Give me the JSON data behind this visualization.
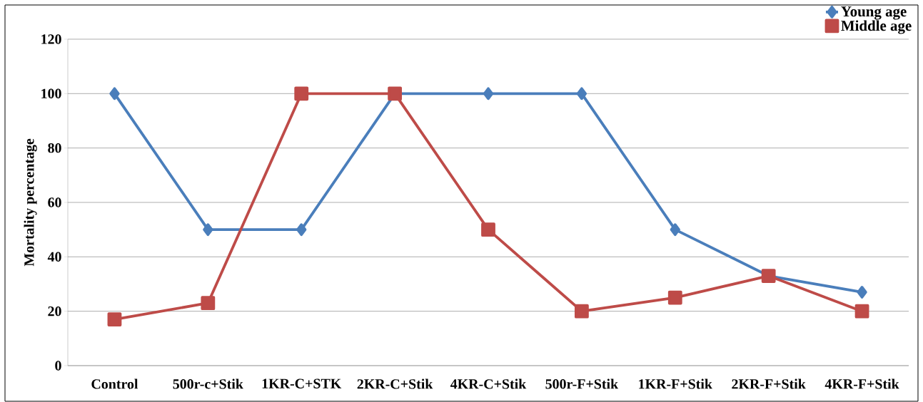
{
  "chart_data": {
    "type": "line",
    "ylabel": "Mortality percentage",
    "categories": [
      "Control",
      "500r-c+Stik",
      "1KR-C+STK",
      "2KR-C+Stik",
      "4KR-C+Stik",
      "500r-F+Stik",
      "1KR-F+Stik",
      "2KR-F+Stik",
      "4KR-F+Stik"
    ],
    "series": [
      {
        "name": "Young age",
        "color": "#4a7ebb",
        "marker": "diamond",
        "values": [
          100,
          50,
          50,
          100,
          100,
          100,
          50,
          33,
          27
        ]
      },
      {
        "name": "Middle age",
        "color": "#be4b48",
        "marker": "square",
        "values": [
          17,
          23,
          100,
          100,
          50,
          20,
          25,
          33,
          20
        ]
      }
    ],
    "ylim": [
      0,
      120
    ],
    "yticks": [
      0,
      20,
      40,
      60,
      80,
      100,
      120
    ],
    "grid": "y",
    "legend": "top right",
    "line_style": "solid"
  }
}
